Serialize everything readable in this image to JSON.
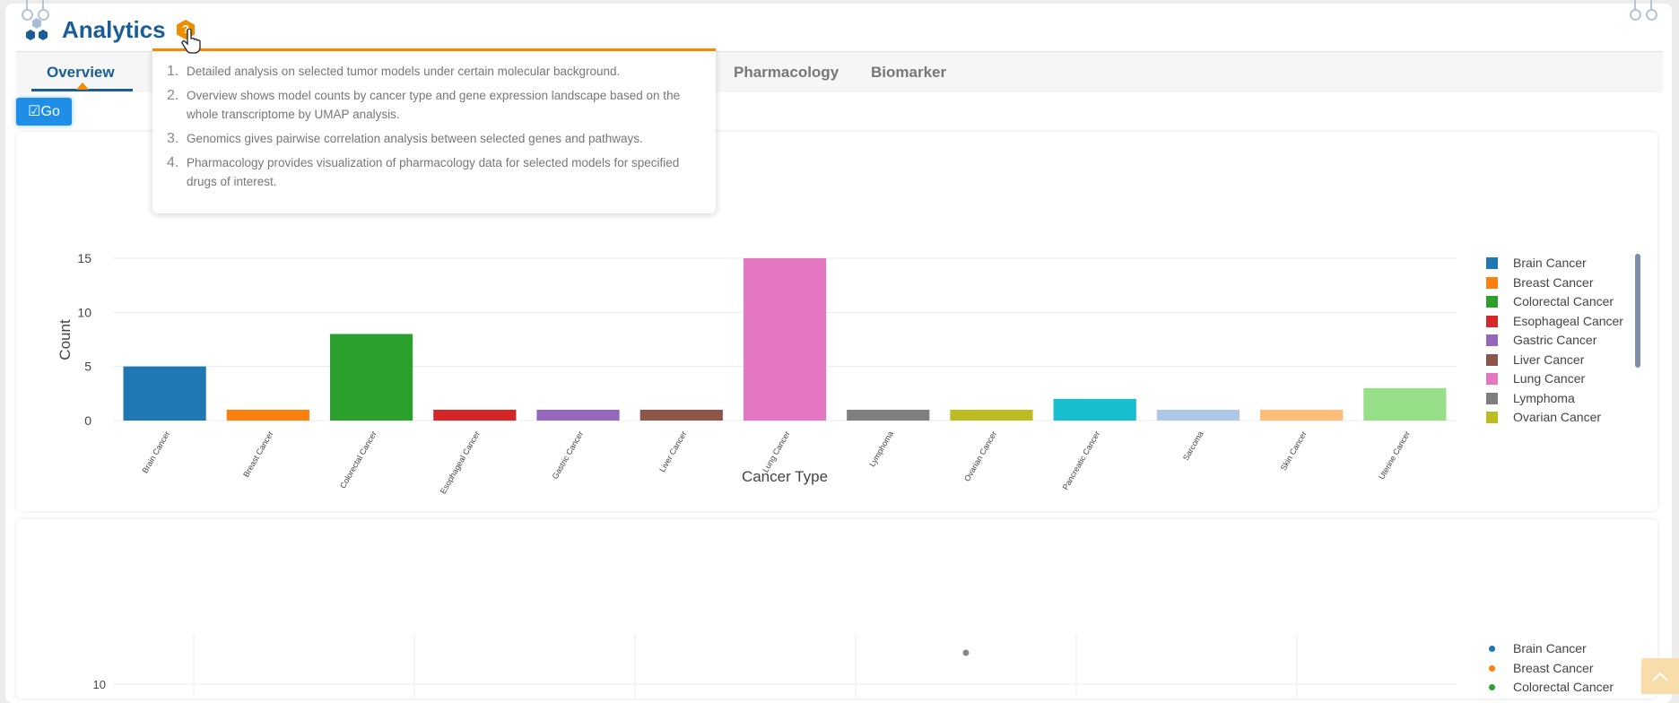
{
  "header": {
    "title": "Analytics",
    "help_icon": "question-hexagon-icon"
  },
  "tabs": [
    {
      "label": "Overview",
      "active": true
    },
    {
      "label": "Pharmacology"
    },
    {
      "label": "Biomarker"
    }
  ],
  "go_button": {
    "label": "Go",
    "icon": "checkbox-icon"
  },
  "tooltip": {
    "items": [
      {
        "num": "1.",
        "text": "Detailed analysis on selected tumor models under certain molecular background."
      },
      {
        "num": "2.",
        "text": "Overview shows model counts by cancer type and gene expression landscape based on the whole transcriptome by UMAP analysis."
      },
      {
        "num": "3.",
        "text": "Genomics gives pairwise correlation analysis between selected genes and pathways."
      },
      {
        "num": "4.",
        "text": "Pharmacology provides visualization of pharmacology data for selected models for specified drugs of interest."
      }
    ]
  },
  "chart_data": [
    {
      "type": "bar",
      "xlabel": "Cancer Type",
      "ylabel": "Count",
      "ylim": [
        0,
        15
      ],
      "yticks": [
        "0",
        "5",
        "10",
        "15"
      ],
      "grid": true,
      "legend": "right",
      "categories": [
        "Brain Cancer",
        "Breast Cancer",
        "Colorectal Cancer",
        "Esophageal Cancer",
        "Gastric Cancer",
        "Liver Cancer",
        "Lung Cancer",
        "Lymphoma",
        "Ovarian Cancer",
        "Pancreatic Cancer",
        "Sarcoma",
        "Skin Cancer",
        "Uterine Cancer"
      ],
      "values": [
        5,
        1,
        8,
        1,
        1,
        1,
        15,
        1,
        1,
        2,
        1,
        1,
        3
      ],
      "colors": [
        "#1f77b4",
        "#ff7f0e",
        "#2ca02c",
        "#d62728",
        "#9467bd",
        "#8c564b",
        "#e377c2",
        "#7f7f7f",
        "#bcbd22",
        "#17becf",
        "#aec7e8",
        "#ffbb78",
        "#98df8a"
      ],
      "legend_visible": [
        "Brain Cancer",
        "Breast Cancer",
        "Colorectal Cancer",
        "Esophageal Cancer",
        "Gastric Cancer",
        "Liver Cancer",
        "Lung Cancer",
        "Lymphoma",
        "Ovarian Cancer"
      ]
    },
    {
      "type": "scatter",
      "yticks": [
        "10"
      ],
      "legend": "right",
      "legend_visible": [
        "Brain Cancer",
        "Breast Cancer",
        "Colorectal Cancer"
      ],
      "legend_colors": [
        "#1f77b4",
        "#ff7f0e",
        "#2ca02c"
      ]
    }
  ],
  "scroll_top": {
    "icon": "chevron-up-icon"
  }
}
